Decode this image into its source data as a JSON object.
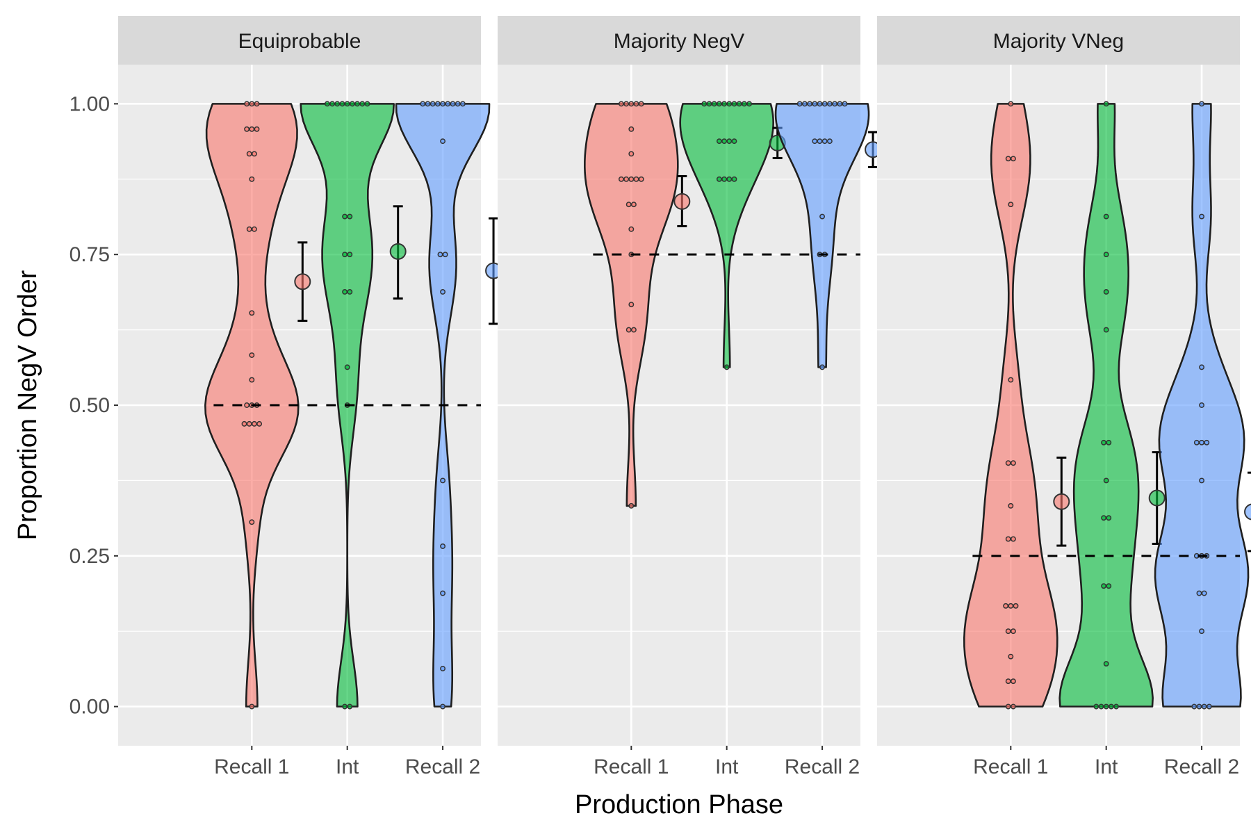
{
  "chart_data": {
    "type": "violin",
    "xlabel": "Production Phase",
    "ylabel": "Proportion NegV Order",
    "ylim": [
      -0.065,
      1.065
    ],
    "yticks": [
      0,
      0.25,
      0.5,
      0.75,
      1
    ],
    "ytick_labels": [
      "0.00",
      "0.25",
      "0.50",
      "0.75",
      "1.00"
    ],
    "categories": [
      "Recall 1",
      "Int",
      "Recall 2"
    ],
    "colors": {
      "Recall 1": "#f8766d",
      "Int": "#00ba38",
      "Recall 2": "#619cff"
    },
    "grid": true,
    "legend": "none",
    "panels": [
      {
        "name": "Equiprobable",
        "reference_line": 0.5,
        "groups": [
          {
            "phase": "Recall 1",
            "points": [
              1,
              1,
              1,
              0.958,
              0.958,
              0.958,
              0.917,
              0.917,
              0.875,
              0.792,
              0.792,
              0.653,
              0.583,
              0.542,
              0.5,
              0.5,
              0.5,
              0.469,
              0.469,
              0.469,
              0.469,
              0.306,
              0
            ],
            "mean": 0.705,
            "ci": [
              0.64,
              0.77
            ]
          },
          {
            "phase": "Int",
            "points": [
              1,
              1,
              1,
              1,
              1,
              1,
              1,
              1,
              1,
              0.813,
              0.813,
              0.75,
              0.75,
              0.688,
              0.688,
              0.563,
              0.5,
              0,
              0
            ],
            "mean": 0.755,
            "ci": [
              0.677,
              0.83
            ]
          },
          {
            "phase": "Recall 2",
            "points": [
              1,
              1,
              1,
              1,
              1,
              1,
              1,
              1,
              1,
              0.938,
              0.75,
              0.75,
              0.688,
              0.375,
              0.266,
              0.188,
              0.063,
              0
            ],
            "mean": 0.723,
            "ci": [
              0.635,
              0.81
            ]
          }
        ]
      },
      {
        "name": "Majority NegV",
        "reference_line": 0.75,
        "groups": [
          {
            "phase": "Recall 1",
            "points": [
              1,
              1,
              1,
              1,
              1,
              0.958,
              0.917,
              0.875,
              0.875,
              0.875,
              0.875,
              0.875,
              0.833,
              0.833,
              0.792,
              0.75,
              0.667,
              0.625,
              0.625,
              0.333
            ],
            "mean": 0.838,
            "ci": [
              0.797,
              0.88
            ]
          },
          {
            "phase": "Int",
            "points": [
              1,
              1,
              1,
              1,
              1,
              1,
              1,
              1,
              1,
              1,
              0.938,
              0.938,
              0.938,
              0.938,
              0.875,
              0.875,
              0.875,
              0.875,
              0.563
            ],
            "mean": 0.935,
            "ci": [
              0.91,
              0.96
            ]
          },
          {
            "phase": "Recall 2",
            "points": [
              1,
              1,
              1,
              1,
              1,
              1,
              1,
              1,
              1,
              1,
              0.938,
              0.938,
              0.938,
              0.938,
              0.813,
              0.75,
              0.75,
              0.563
            ],
            "mean": 0.924,
            "ci": [
              0.895,
              0.953
            ]
          }
        ]
      },
      {
        "name": "Majority VNeg",
        "reference_line": 0.25,
        "groups": [
          {
            "phase": "Recall 1",
            "points": [
              1,
              0.909,
              0.909,
              0.833,
              0.542,
              0.404,
              0.404,
              0.333,
              0.278,
              0.278,
              0.167,
              0.167,
              0.167,
              0.125,
              0.125,
              0.083,
              0.042,
              0.042,
              0,
              0
            ],
            "mean": 0.34,
            "ci": [
              0.267,
              0.413
            ]
          },
          {
            "phase": "Int",
            "points": [
              1,
              0.813,
              0.75,
              0.688,
              0.625,
              0.438,
              0.438,
              0.375,
              0.313,
              0.313,
              0.2,
              0.2,
              0.071,
              0,
              0,
              0,
              0,
              0
            ],
            "mean": 0.346,
            "ci": [
              0.27,
              0.422
            ]
          },
          {
            "phase": "Recall 2",
            "points": [
              1,
              0.813,
              0.563,
              0.5,
              0.438,
              0.438,
              0.438,
              0.375,
              0.25,
              0.25,
              0.25,
              0.188,
              0.188,
              0.125,
              0,
              0,
              0,
              0
            ],
            "mean": 0.323,
            "ci": [
              0.258,
              0.388
            ]
          }
        ]
      }
    ]
  }
}
